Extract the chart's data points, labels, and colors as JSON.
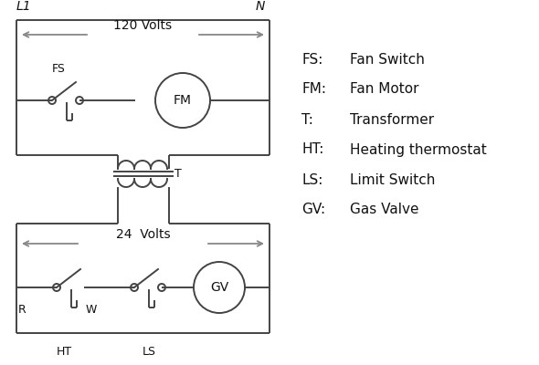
{
  "bg_color": "#ffffff",
  "line_color": "#444444",
  "arrow_color": "#888888",
  "text_color": "#111111",
  "L1_label": "L1",
  "N_label": "N",
  "volts120_label": "120 Volts",
  "volts24_label": "24  Volts",
  "entries": [
    [
      "FS:",
      "Fan Switch"
    ],
    [
      "FM:",
      " Fan Motor"
    ],
    [
      "T:",
      "    Transformer"
    ],
    [
      "HT:",
      " Heating thermostat"
    ],
    [
      "LS:",
      "  Limit Switch"
    ],
    [
      "GV:",
      "  Gas Valve"
    ]
  ]
}
